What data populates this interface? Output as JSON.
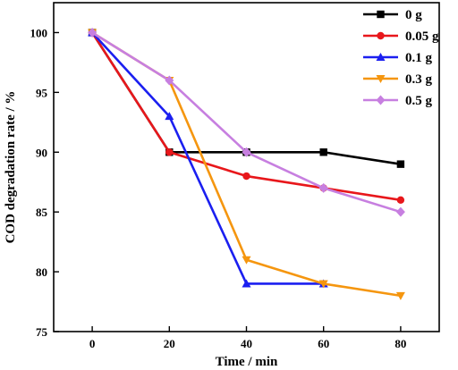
{
  "chart_data": {
    "type": "line",
    "xlabel": "Time / min",
    "ylabel": "COD degradation rate / %",
    "xlim": [
      -10,
      90
    ],
    "ylim": [
      75,
      102.5
    ],
    "x_ticks": [
      0,
      20,
      40,
      60,
      80
    ],
    "y_ticks": [
      75,
      80,
      85,
      90,
      95,
      100
    ],
    "x": [
      0,
      20,
      40,
      60,
      80
    ],
    "grid": false,
    "legend_position": "top-right",
    "series": [
      {
        "name": "0 g",
        "color": "#000000",
        "marker": "square",
        "values": [
          100,
          90,
          90,
          90,
          89
        ]
      },
      {
        "name": "0.05 g",
        "color": "#e8171b",
        "marker": "circle",
        "values": [
          100,
          90,
          88,
          87,
          86
        ]
      },
      {
        "name": "0.1 g",
        "color": "#1b1ff0",
        "marker": "triangle-up",
        "values": [
          100,
          93,
          79,
          79,
          null
        ]
      },
      {
        "name": "0.3 g",
        "color": "#f5960f",
        "marker": "triangle-down",
        "values": [
          100,
          96,
          81,
          79,
          78
        ]
      },
      {
        "name": "0.5 g",
        "color": "#c77fe0",
        "marker": "diamond",
        "values": [
          100,
          96,
          90,
          87,
          85
        ]
      }
    ]
  }
}
